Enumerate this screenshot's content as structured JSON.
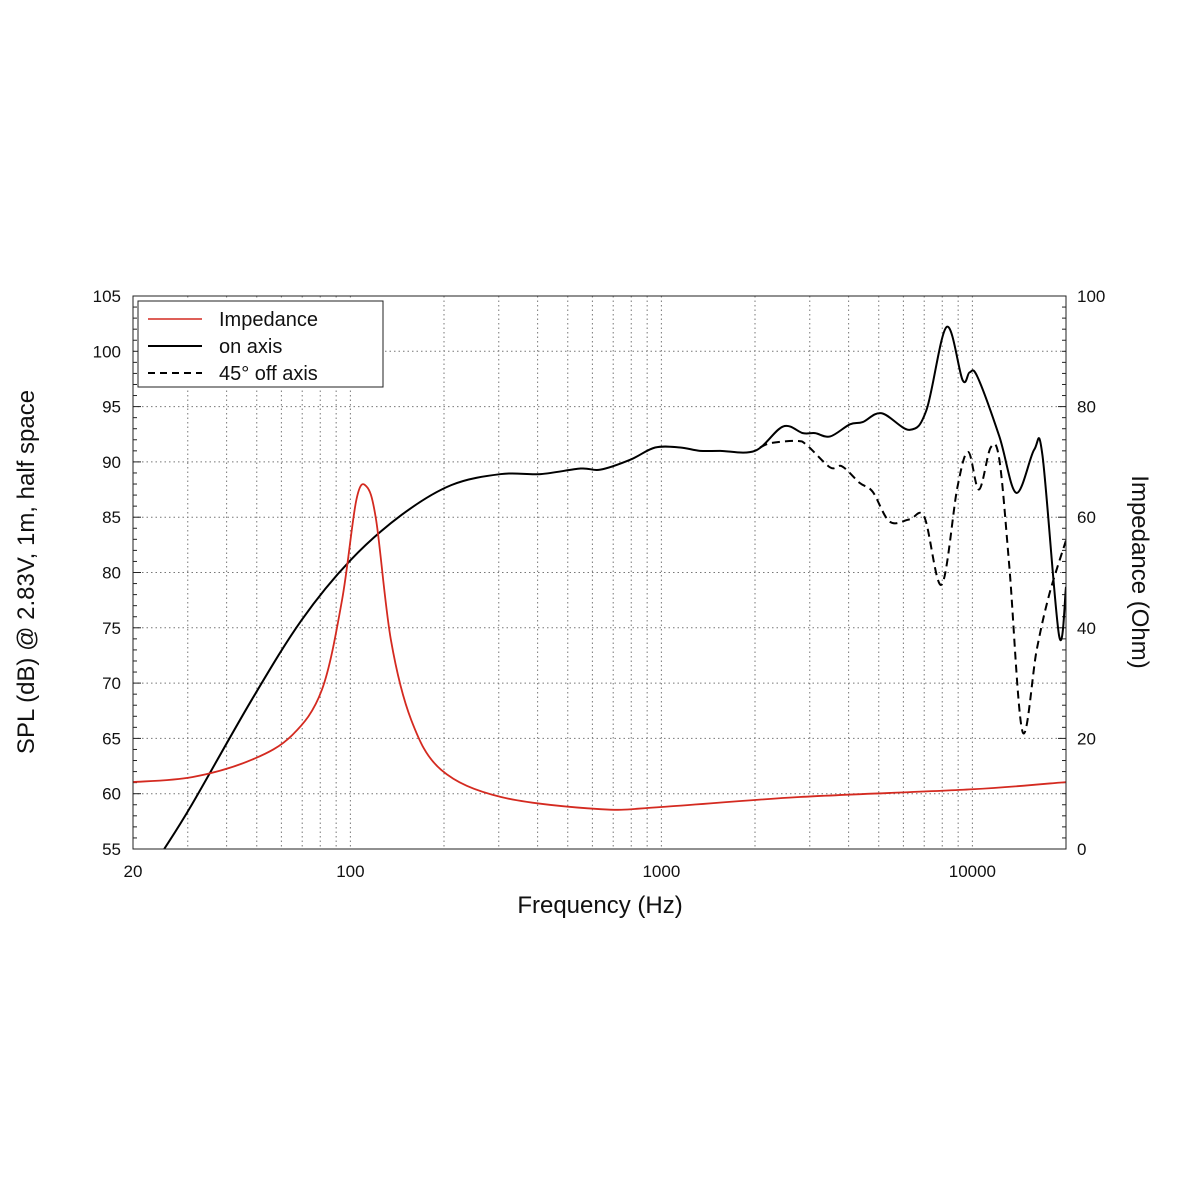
{
  "chart_data": {
    "type": "line",
    "title": "",
    "xlabel": "Frequency (Hz)",
    "ylabel": "SPL (dB) @ 2.83V, 1m, half space",
    "y2label": "Impedance (Ohm)",
    "xscale": "log",
    "xlim": [
      20,
      20000
    ],
    "ylim": [
      55,
      105
    ],
    "y2lim": [
      0,
      100
    ],
    "x_ticks": [
      20,
      100,
      1000,
      10000
    ],
    "x_tick_labels": [
      "20",
      "100",
      "1000",
      "10000"
    ],
    "y_ticks": [
      55,
      60,
      65,
      70,
      75,
      80,
      85,
      90,
      95,
      100,
      105
    ],
    "y2_ticks": [
      0,
      20,
      40,
      60,
      80,
      100
    ],
    "grid": true,
    "legend_position": "top-left",
    "series": [
      {
        "name": "Impedance",
        "axis": "right",
        "color": "#d42a20",
        "style": "solid",
        "x": [
          20,
          31,
          48,
          65,
          81,
          94,
          104.5,
          112.5,
          121,
          135,
          157,
          196,
          305,
          637,
          1000,
          2780,
          10000,
          20000
        ],
        "y": [
          12.1,
          13.0,
          16.1,
          20.6,
          28.8,
          45.0,
          63.1,
          65.6,
          59.5,
          37.8,
          23.3,
          14.3,
          9.4,
          7.2,
          7.6,
          9.4,
          10.8,
          12.1
        ]
      },
      {
        "name": "on axis",
        "axis": "left",
        "color": "#000000",
        "style": "solid",
        "x": [
          25.2,
          30.9,
          48.2,
          69.7,
          100,
          146,
          211,
          305,
          409,
          550,
          637,
          795,
          955,
          1150,
          1330,
          1545,
          2000,
          2460,
          2850,
          3120,
          3490,
          4040,
          4440,
          5110,
          6280,
          7120,
          8260,
          9300,
          9800,
          10380,
          12210,
          13840,
          15800,
          16800,
          19000,
          20000
        ],
        "y": [
          55,
          59.0,
          68.5,
          75.7,
          81.1,
          85.2,
          87.9,
          88.9,
          88.9,
          89.4,
          89.3,
          90.2,
          91.3,
          91.3,
          91.0,
          91.0,
          91.0,
          93.2,
          92.6,
          92.6,
          92.3,
          93.4,
          93.6,
          94.4,
          92.9,
          94.7,
          102.2,
          97.4,
          98.1,
          97.7,
          92.3,
          87.2,
          91.1,
          90.6,
          74.3,
          78.7
        ]
      },
      {
        "name": "45° off axis",
        "axis": "left",
        "color": "#000000",
        "style": "dashed",
        "x": [
          2075,
          2250,
          2730,
          2940,
          3490,
          3810,
          4340,
          4780,
          5420,
          6280,
          7010,
          7960,
          8950,
          9700,
          10500,
          11450,
          12210,
          13150,
          14500,
          16100,
          17700,
          20000
        ],
        "y": [
          91.3,
          91.7,
          91.9,
          91.5,
          89.5,
          89.6,
          88.1,
          87.3,
          84.6,
          84.8,
          85.0,
          78.9,
          87.7,
          90.9,
          87.5,
          91.3,
          90.2,
          80.5,
          65.6,
          73.0,
          78.1,
          82.9
        ]
      }
    ]
  }
}
